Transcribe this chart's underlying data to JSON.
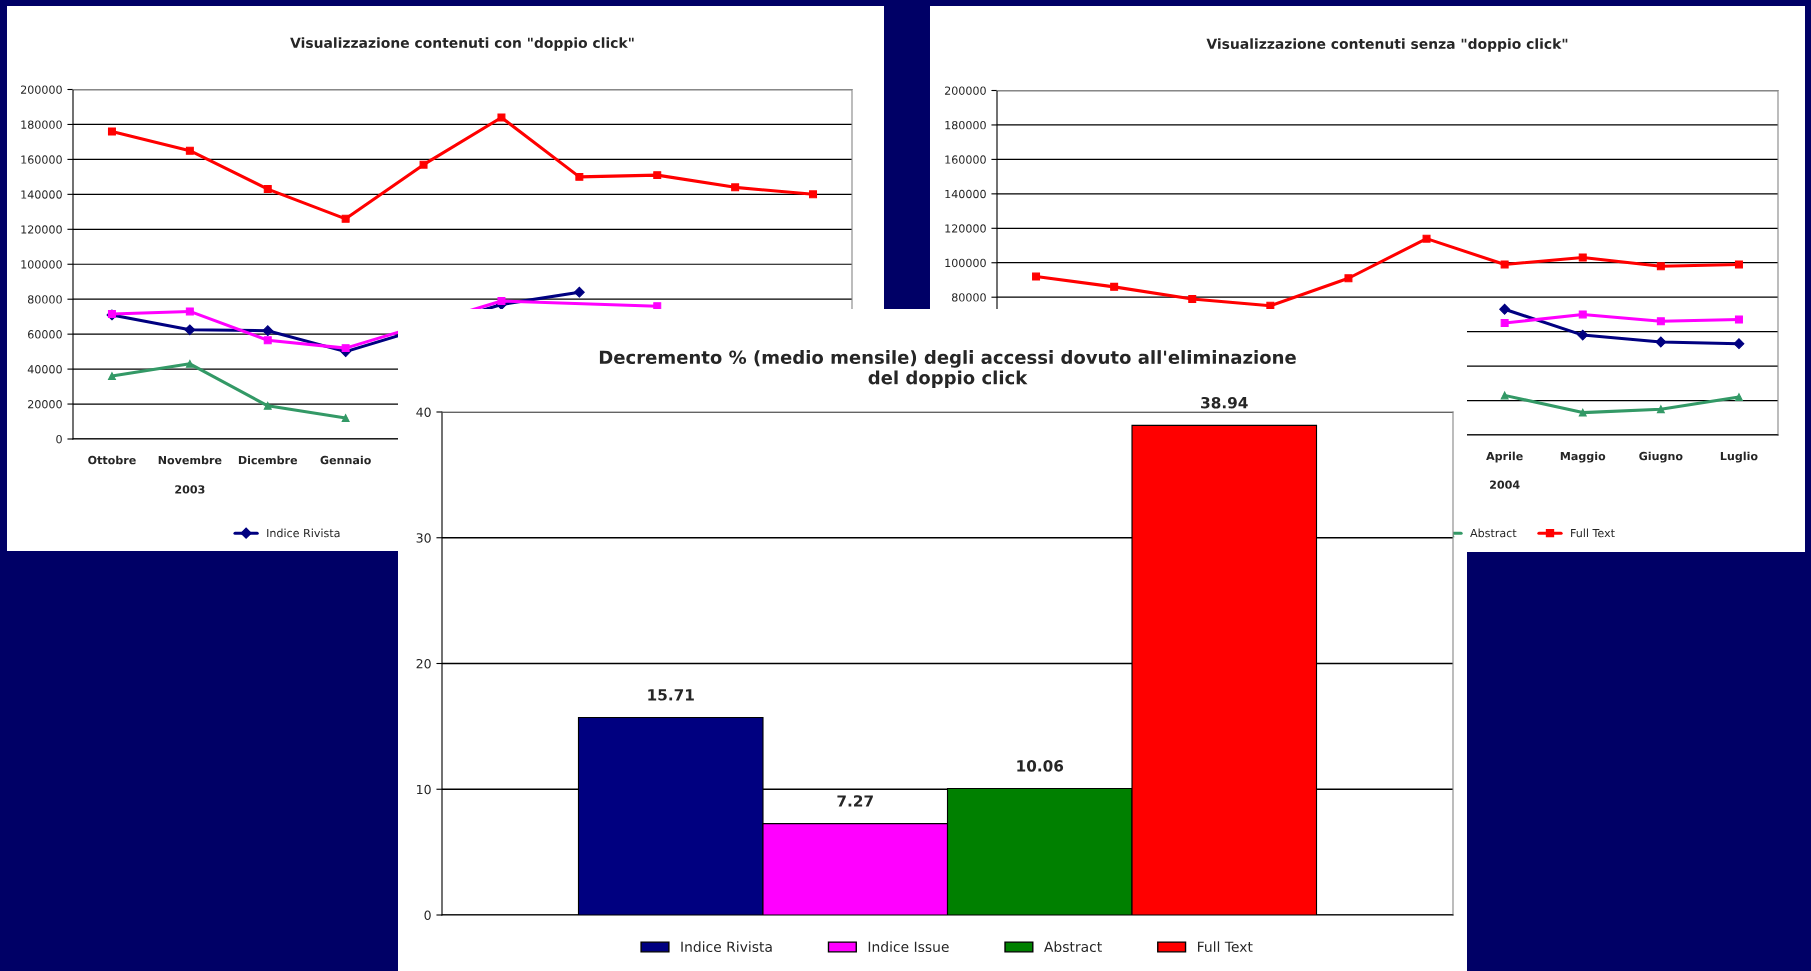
{
  "chart_data": [
    {
      "type": "line",
      "title": "Visualizzazione contenuti con \"doppio click\"",
      "categories": [
        "Ottobre",
        "Novembre",
        "Dicembre",
        "Gennaio",
        null,
        null,
        null,
        null,
        null,
        null
      ],
      "series": [
        {
          "name": "Indice Rivista",
          "color": "#000080",
          "marker": "diamond",
          "values": [
            71000,
            62500,
            62000,
            50000,
            null,
            77000,
            84000,
            null,
            null,
            null
          ]
        },
        {
          "color": "#ff00ff",
          "marker": "square",
          "values": [
            71500,
            73000,
            56500,
            52000,
            null,
            79000,
            null,
            76000,
            null,
            null
          ]
        },
        {
          "color": "#339966",
          "marker": "triangle",
          "values": [
            36000,
            43000,
            19000,
            12000,
            null,
            null,
            null,
            null,
            null,
            null
          ]
        },
        {
          "color": "#ff0000",
          "marker": "square",
          "values": [
            176000,
            165000,
            143000,
            126000,
            157000,
            184000,
            150000,
            151000,
            144000,
            140000
          ]
        }
      ],
      "ylim": [
        0,
        200000
      ],
      "yticks": [
        0,
        20000,
        40000,
        60000,
        80000,
        100000,
        120000,
        140000,
        160000,
        180000,
        200000
      ],
      "grid": "y",
      "legend": "bottom",
      "line_style": "solid",
      "annotations": [
        "2003"
      ]
    },
    {
      "type": "line",
      "title": "Visualizzazione contenuti senza \"doppio click\"",
      "categories": [
        null,
        null,
        null,
        null,
        null,
        null,
        "Aprile",
        "Maggio",
        "Giugno",
        "Luglio"
      ],
      "series": [
        {
          "color": "#000080",
          "marker": "diamond",
          "values": [
            null,
            null,
            null,
            null,
            null,
            null,
            73000,
            58000,
            54000,
            53000
          ]
        },
        {
          "color": "#ff00ff",
          "marker": "square",
          "values": [
            null,
            null,
            null,
            null,
            null,
            null,
            65000,
            70000,
            66000,
            67000
          ]
        },
        {
          "name": "Abstract",
          "color": "#339966",
          "marker": "triangle",
          "values": [
            null,
            null,
            null,
            null,
            null,
            null,
            23000,
            13000,
            15000,
            22000
          ]
        },
        {
          "name": "Full Text",
          "color": "#ff0000",
          "marker": "square",
          "values": [
            92000,
            86000,
            79000,
            75000,
            91000,
            114000,
            99000,
            103000,
            98000,
            99000
          ]
        }
      ],
      "ylim": [
        0,
        200000
      ],
      "yticks": [
        {
          "value": 0,
          "label": null
        },
        {
          "value": 20000,
          "label": null
        },
        {
          "value": 40000,
          "label": null
        },
        {
          "value": 60000,
          "label": null
        },
        80000,
        100000,
        120000,
        140000,
        160000,
        180000,
        200000
      ],
      "grid": "y",
      "legend": "bottom",
      "line_style": "solid",
      "annotations": [
        "2004"
      ]
    },
    {
      "type": "bar",
      "title": "Decremento % (medio mensile) degli accessi dovuto all'eliminazione\ndel doppio click",
      "categories": [
        null
      ],
      "series": [
        {
          "name": "Indice Rivista",
          "color": "#000080",
          "values": [
            15.71
          ]
        },
        {
          "name": "Indice Issue",
          "color": "#ff00ff",
          "values": [
            7.27
          ]
        },
        {
          "name": "Abstract",
          "color": "#008000",
          "values": [
            10.06
          ]
        },
        {
          "name": "Full Text",
          "color": "#ff0000",
          "values": [
            38.94
          ]
        }
      ],
      "ylim": [
        0,
        40
      ],
      "yticks": [
        0,
        10,
        20,
        30,
        40
      ],
      "grid": "y",
      "legend": "bottom",
      "data_labels": true
    }
  ]
}
